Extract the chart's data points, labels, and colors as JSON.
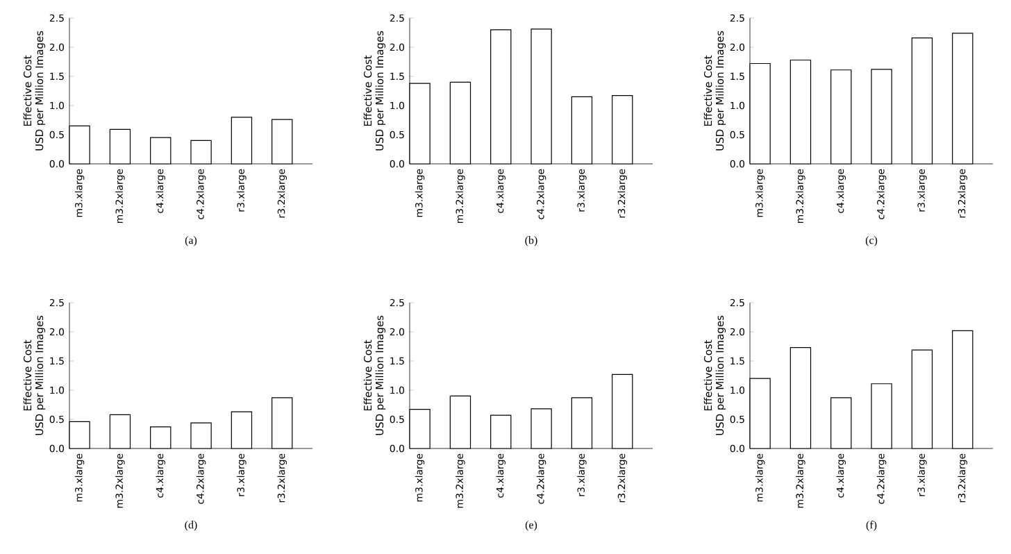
{
  "chart_data": [
    {
      "type": "bar",
      "xlabel": "(a)",
      "ylabel": "Effective Cost USD per Million Images",
      "categories": [
        "m3.xlarge",
        "m3.2xlarge",
        "c4.xlarge",
        "c4.2xlarge",
        "r3.xlarge",
        "r3.2xlarge"
      ],
      "values": [
        0.65,
        0.59,
        0.45,
        0.4,
        0.8,
        0.76
      ],
      "color": "#ffffff",
      "ylim": [
        0,
        2.5
      ],
      "yticks": [
        {
          "value": 0,
          "label": "0.0"
        },
        {
          "value": 0.5,
          "label": "0.5"
        },
        {
          "value": 1,
          "label": "1.0"
        },
        {
          "value": 1.5,
          "label": "1.5"
        },
        {
          "value": 2,
          "label": "2.0"
        },
        {
          "value": 2.5,
          "label": "2.5"
        }
      ]
    },
    {
      "type": "bar",
      "xlabel": "(b)",
      "ylabel": "Effective Cost USD per Million Images",
      "categories": [
        "m3.xlarge",
        "m3.2xlarge",
        "c4.xlarge",
        "c4.2xlarge",
        "r3.xlarge",
        "r3.2xlarge"
      ],
      "values": [
        1.38,
        1.4,
        2.3,
        2.31,
        1.15,
        1.17
      ],
      "color": "#ffffff",
      "ylim": [
        0,
        2.5
      ],
      "yticks": [
        {
          "value": 0,
          "label": "0.0"
        },
        {
          "value": 0.5,
          "label": "0.5"
        },
        {
          "value": 1,
          "label": "1.0"
        },
        {
          "value": 1.5,
          "label": "1.5"
        },
        {
          "value": 2,
          "label": "2.0"
        },
        {
          "value": 2.5,
          "label": "2.5"
        }
      ]
    },
    {
      "type": "bar",
      "xlabel": "(c)",
      "ylabel": "Effective Cost USD per Million Images",
      "categories": [
        "m3.xlarge",
        "m3.2xlarge",
        "c4.xlarge",
        "c4.2xlarge",
        "r3.xlarge",
        "r3.2xlarge"
      ],
      "values": [
        1.72,
        1.78,
        1.61,
        1.62,
        2.16,
        2.24
      ],
      "color": "#ffffff",
      "ylim": [
        0,
        2.5
      ],
      "yticks": [
        {
          "value": 0,
          "label": "0.0"
        },
        {
          "value": 0.5,
          "label": "0.5"
        },
        {
          "value": 1,
          "label": "1.0"
        },
        {
          "value": 1.5,
          "label": "1.5"
        },
        {
          "value": 2,
          "label": "2.0"
        },
        {
          "value": 2.5,
          "label": "2.5"
        }
      ]
    },
    {
      "type": "bar",
      "xlabel": "(d)",
      "ylabel": "Effective Cost USD per Million Images",
      "categories": [
        "m3.xlarge",
        "m3.2xlarge",
        "c4.xlarge",
        "c4.2xlarge",
        "r3.xlarge",
        "r3.2xlarge"
      ],
      "values": [
        0.46,
        0.58,
        0.37,
        0.44,
        0.63,
        0.87
      ],
      "color": "#ffffff",
      "ylim": [
        0,
        2.5
      ],
      "yticks": [
        {
          "value": 0,
          "label": "0.0"
        },
        {
          "value": 0.5,
          "label": "0.5"
        },
        {
          "value": 1,
          "label": "1.0"
        },
        {
          "value": 1.5,
          "label": "1.5"
        },
        {
          "value": 2,
          "label": "2.0"
        },
        {
          "value": 2.5,
          "label": "2.5"
        }
      ]
    },
    {
      "type": "bar",
      "xlabel": "(e)",
      "ylabel": "Effective Cost USD per Million Images",
      "categories": [
        "m3.xlarge",
        "m3.2xlarge",
        "c4.xlarge",
        "c4.2xlarge",
        "r3.xlarge",
        "r3.2xlarge"
      ],
      "values": [
        0.67,
        0.9,
        0.57,
        0.68,
        0.87,
        1.27
      ],
      "color": "#ffffff",
      "ylim": [
        0,
        2.5
      ],
      "yticks": [
        {
          "value": 0,
          "label": "0.0"
        },
        {
          "value": 0.5,
          "label": "0.5"
        },
        {
          "value": 1,
          "label": "1.0"
        },
        {
          "value": 1.5,
          "label": "1.5"
        },
        {
          "value": 2,
          "label": "2.0"
        },
        {
          "value": 2.5,
          "label": "2.5"
        }
      ]
    },
    {
      "type": "bar",
      "xlabel": "(f)",
      "ylabel": "Effective Cost USD per Million Images",
      "categories": [
        "m3.xlarge",
        "m3.2xlarge",
        "c4.xlarge",
        "c4.2xlarge",
        "r3.xlarge",
        "r3.2xlarge"
      ],
      "values": [
        1.2,
        1.73,
        0.87,
        1.11,
        1.69,
        2.02
      ],
      "color": "#ffffff",
      "ylim": [
        0,
        2.5
      ],
      "yticks": [
        {
          "value": 0,
          "label": "0.0"
        },
        {
          "value": 0.5,
          "label": "0.5"
        },
        {
          "value": 1,
          "label": "1.0"
        },
        {
          "value": 1.5,
          "label": "1.5"
        },
        {
          "value": 2,
          "label": "2.0"
        },
        {
          "value": 2.5,
          "label": "2.5"
        }
      ]
    }
  ]
}
